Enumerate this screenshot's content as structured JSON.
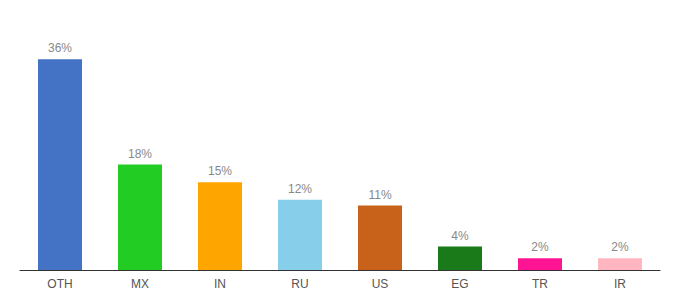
{
  "chart_data": {
    "type": "bar",
    "categories": [
      "OTH",
      "MX",
      "IN",
      "RU",
      "US",
      "EG",
      "TR",
      "IR"
    ],
    "values": [
      36,
      18,
      15,
      12,
      11,
      4,
      2,
      2
    ],
    "value_labels": [
      "36%",
      "18%",
      "15%",
      "12%",
      "11%",
      "4%",
      "2%",
      "2%"
    ],
    "colors": [
      "#4472c4",
      "#22cc22",
      "#ffa500",
      "#87ceeb",
      "#c8621a",
      "#1a7a1a",
      "#ff1493",
      "#ffb6c1"
    ],
    "ylim": [
      0,
      42
    ],
    "grid": false,
    "data_labels": true,
    "tick_labels": "x"
  }
}
